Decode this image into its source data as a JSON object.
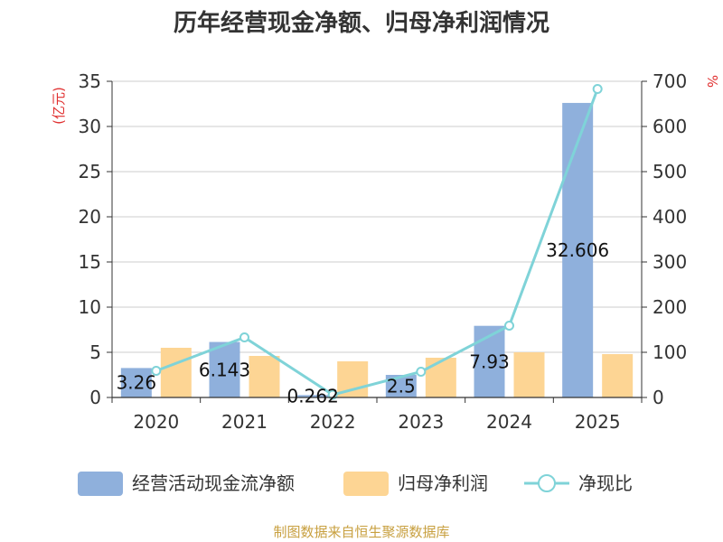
{
  "title": "历年经营现金净额、归母净利润情况",
  "source": "制图数据来自恒生聚源数据库",
  "left_unit": "(亿元)",
  "right_unit": "%",
  "legend": [
    {
      "label": "经营活动现金流净额",
      "color": "#8fb0dc",
      "icon": "bar-swatch"
    },
    {
      "label": "归母净利润",
      "color": "#fdd594",
      "icon": "bar-swatch"
    },
    {
      "label": "净现比",
      "color": "#7fd3d8",
      "icon": "line-circle-marker"
    }
  ],
  "chart_data": {
    "type": "bar",
    "categories": [
      "2020",
      "2021",
      "2022",
      "2023",
      "2024",
      "2025"
    ],
    "ylim": [
      0,
      35
    ],
    "yticks": [
      0,
      5,
      10,
      15,
      20,
      25,
      30,
      35
    ],
    "y2lim": [
      0,
      700
    ],
    "y2ticks": [
      0,
      100,
      200,
      300,
      400,
      500,
      600,
      700
    ],
    "grid": true,
    "legend_position": "bottom",
    "series": [
      {
        "name": "经营活动现金流净额",
        "type": "bar",
        "axis": "left",
        "color": "#8fb0dc",
        "values": [
          3.26,
          6.143,
          0.262,
          2.5,
          7.93,
          32.606
        ],
        "labels": [
          "3.26",
          "6.143",
          "0.262",
          "2.5",
          "7.93",
          "32.606"
        ]
      },
      {
        "name": "归母净利润",
        "type": "bar",
        "axis": "left",
        "color": "#fdd594",
        "values": [
          5.5,
          4.6,
          4.0,
          4.4,
          5.0,
          4.8
        ]
      },
      {
        "name": "净现比",
        "type": "line",
        "axis": "right",
        "color": "#7fd3d8",
        "values": [
          59,
          133,
          6,
          57,
          159,
          683
        ]
      }
    ]
  }
}
